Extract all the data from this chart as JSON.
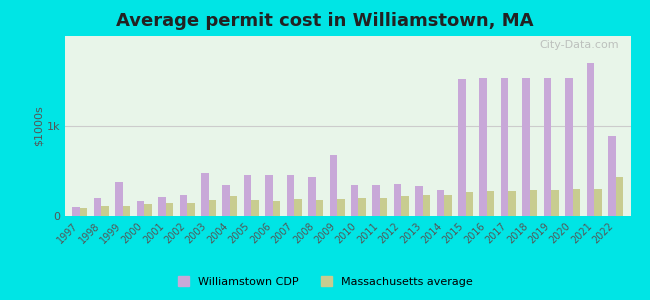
{
  "title": "Average permit cost in Williamstown, MA",
  "ylabel": "$1000s",
  "background_outer": "#00e5e5",
  "background_inner_top": "#e8f5e9",
  "background_inner_bottom": "#e0f0e0",
  "years": [
    1997,
    1998,
    1999,
    2000,
    2001,
    2002,
    2003,
    2004,
    2005,
    2006,
    2007,
    2008,
    2009,
    2010,
    2011,
    2012,
    2013,
    2014,
    2015,
    2016,
    2017,
    2018,
    2019,
    2020,
    2021,
    2022
  ],
  "williamstown": [
    100,
    200,
    380,
    170,
    210,
    230,
    480,
    340,
    460,
    460,
    460,
    430,
    680,
    340,
    350,
    360,
    330,
    290,
    1520,
    1530,
    1530,
    1530,
    1530,
    1530,
    1700,
    890
  ],
  "mass_avg": [
    90,
    110,
    110,
    130,
    150,
    140,
    180,
    220,
    180,
    165,
    185,
    175,
    190,
    195,
    195,
    220,
    230,
    235,
    270,
    280,
    280,
    290,
    290,
    295,
    295,
    430
  ],
  "williamstown_color": "#c8a8d8",
  "mass_avg_color": "#c8cc90",
  "gridline_color": "#cccccc",
  "bar_width": 0.35,
  "ylim": [
    0,
    2000
  ],
  "ytick_label": "1k",
  "ytick_value": 1000,
  "legend_label_1": "Williamstown CDP",
  "legend_label_2": "Massachusetts average"
}
